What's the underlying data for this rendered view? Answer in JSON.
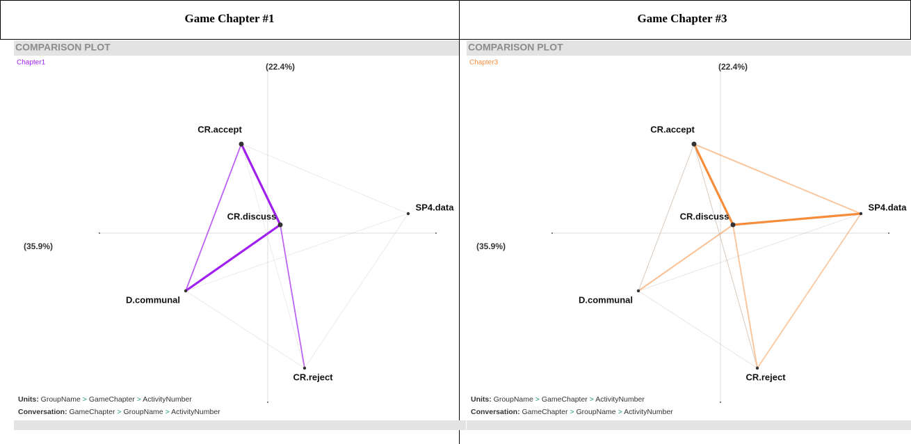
{
  "panels": [
    {
      "title": "Game Chapter #1",
      "plot_title": "COMPARISON PLOT",
      "legend": "Chapter1",
      "y_axis_label": "(22.4%)",
      "x_axis_label": "(35.9%)",
      "nodes": [
        "CR.accept",
        "CR.discuss",
        "SP4.data",
        "D.communal",
        "CR.reject"
      ],
      "units_key": "Units:",
      "units": [
        "GroupName",
        "GameChapter",
        "ActivityNumber"
      ],
      "conversation_key": "Conversation:",
      "conversation": [
        "GameChapter",
        "GroupName",
        "ActivityNumber"
      ],
      "separator": ">"
    },
    {
      "title": "Game Chapter #3",
      "plot_title": "COMPARISON PLOT",
      "legend": "Chapter3",
      "y_axis_label": "(22.4%)",
      "x_axis_label": "(35.9%)",
      "nodes": [
        "CR.accept",
        "CR.discuss",
        "SP4.data",
        "D.communal",
        "CR.reject"
      ],
      "units_key": "Units:",
      "units": [
        "GroupName",
        "GameChapter",
        "ActivityNumber"
      ],
      "conversation_key": "Conversation:",
      "conversation": [
        "GameChapter",
        "GroupName",
        "ActivityNumber"
      ],
      "separator": ">"
    }
  ]
}
